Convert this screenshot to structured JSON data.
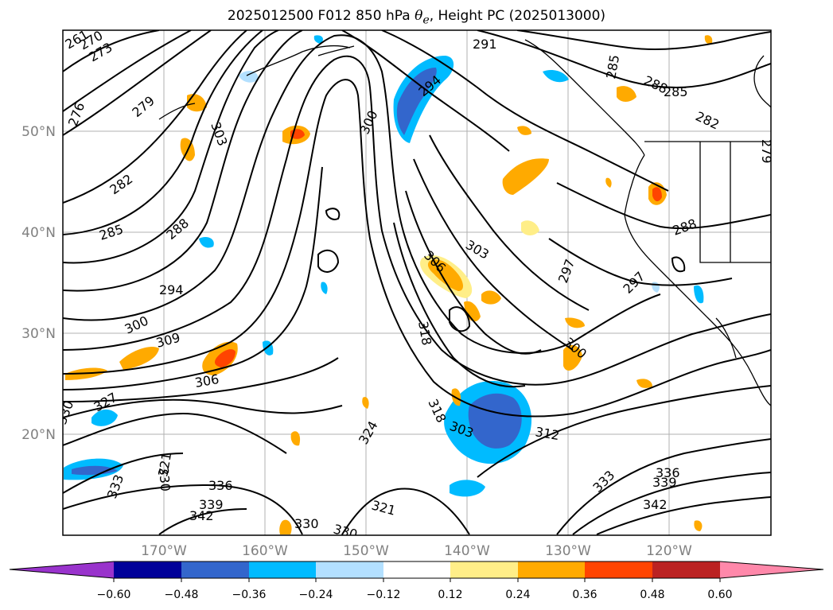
{
  "title": {
    "prefix": "2025012500 F012 850 hPa ",
    "symbol": "θ",
    "sub": "e",
    "suffix": ", Height PC (2025013000)"
  },
  "map": {
    "lat_labels": [
      "50°N",
      "40°N",
      "30°N",
      "20°N"
    ],
    "lon_labels": [
      "170°W",
      "160°W",
      "150°W",
      "140°W",
      "130°W",
      "120°W"
    ],
    "contour_labels": [
      "261",
      "270",
      "273",
      "276",
      "279",
      "282",
      "285",
      "288",
      "294",
      "300",
      "303",
      "306",
      "309",
      "312",
      "318",
      "321",
      "324",
      "327",
      "330",
      "333",
      "336",
      "339",
      "342",
      "291",
      "297",
      "285",
      "288",
      "282",
      "279",
      "294",
      "300",
      "303",
      "306",
      "297",
      "288",
      "297",
      "300",
      "312",
      "318",
      "321",
      "324",
      "327",
      "330",
      "333",
      "336",
      "339",
      "342"
    ]
  },
  "colorbar": {
    "ticks": [
      "−0.60",
      "−0.48",
      "−0.36",
      "−0.24",
      "−0.12",
      "0.12",
      "0.24",
      "0.36",
      "0.48",
      "0.60"
    ],
    "colors": [
      "#9933cc",
      "#000099",
      "#3366cc",
      "#00bbff",
      "#b3e0ff",
      "#ffffff",
      "#ffee88",
      "#ffaa00",
      "#ff4400",
      "#bb2222",
      "#ff88aa"
    ]
  }
}
